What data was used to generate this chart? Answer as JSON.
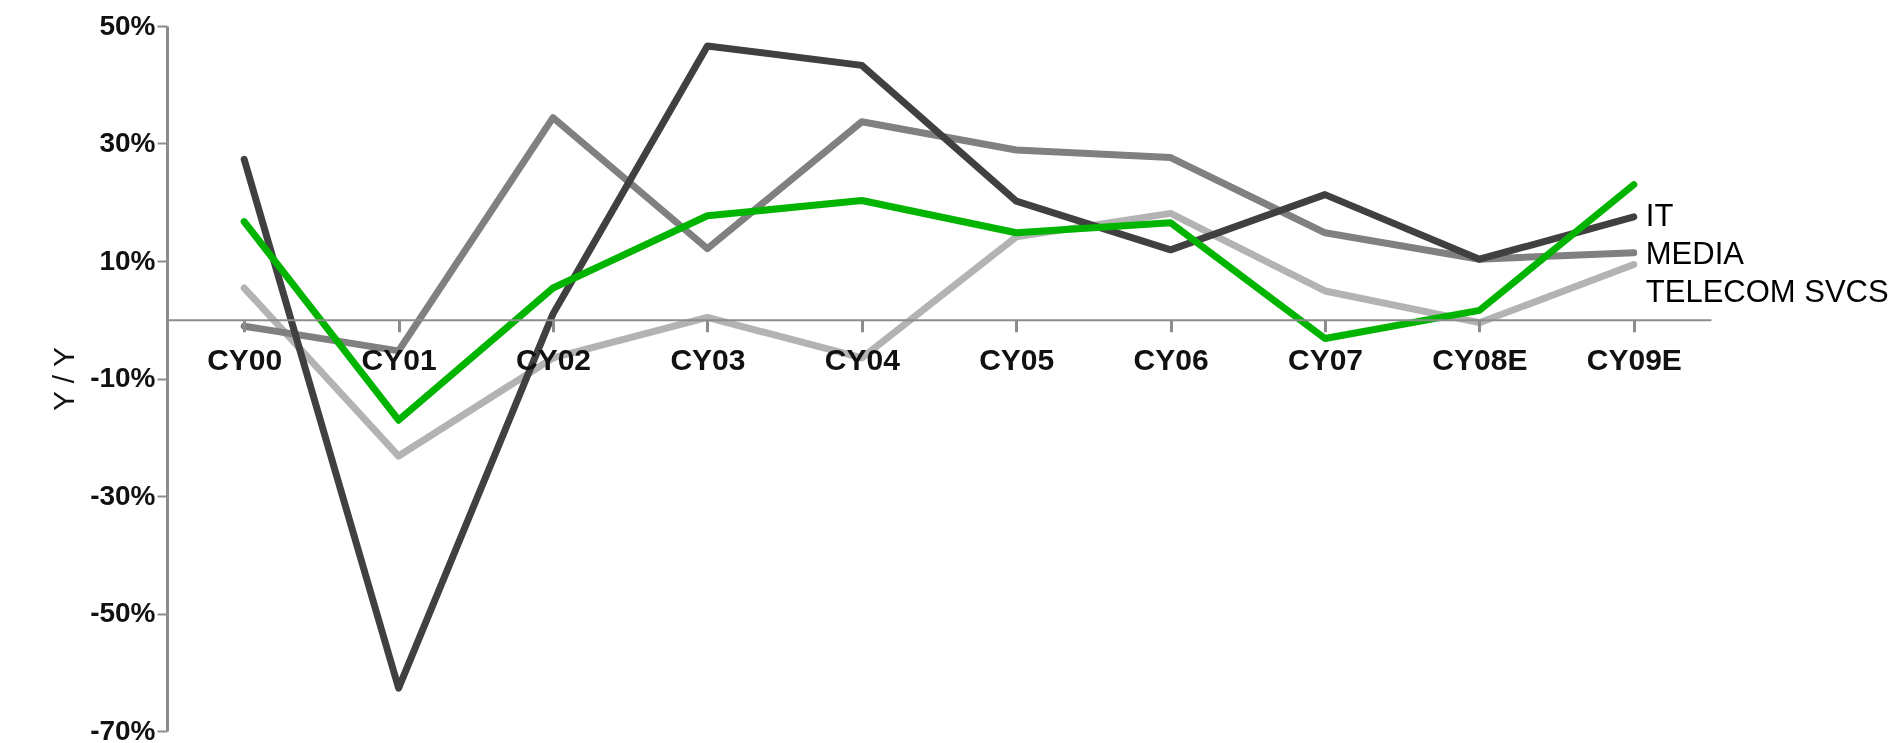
{
  "chart_data": {
    "type": "line",
    "ylabel": "Y / Y",
    "categories": [
      "CY00",
      "CY01",
      "CY02",
      "CY03",
      "CY04",
      "CY05",
      "CY06",
      "CY07",
      "CY08E",
      "CY09E"
    ],
    "series": [
      {
        "color": "#00b400",
        "values": [
          16.7,
          -17.1,
          5.4,
          17.7,
          20.3,
          14.8,
          16.5,
          -3.2,
          1.6,
          23.0
        ]
      },
      {
        "name": "IT",
        "color": "#404040",
        "values": [
          27.3,
          -62.7,
          1.0,
          46.6,
          43.3,
          20.2,
          11.9,
          21.3,
          10.3,
          17.5
        ]
      },
      {
        "name": "MEDIA",
        "color": "#808080",
        "values": [
          -1.1,
          -5.3,
          34.4,
          12.1,
          33.7,
          28.9,
          27.6,
          14.8,
          10.3,
          11.4
        ]
      },
      {
        "name": "TELECOM SVCS",
        "color": "#b3b3b3",
        "values": [
          5.4,
          -23.2,
          -6.5,
          0.4,
          -6.5,
          14.1,
          18.1,
          4.9,
          -0.5,
          9.4
        ]
      }
    ],
    "ylim": [
      -70,
      50
    ],
    "yticks": [
      {
        "value": 50,
        "label": "50%"
      },
      {
        "value": 30,
        "label": "30%"
      },
      {
        "value": 10,
        "label": "10%"
      },
      {
        "value": -10,
        "label": "-10%"
      },
      {
        "value": -30,
        "label": "-30%"
      },
      {
        "value": -50,
        "label": "-50%"
      },
      {
        "value": -70,
        "label": "-70%"
      }
    ],
    "grid": false,
    "line_style": "solid"
  }
}
